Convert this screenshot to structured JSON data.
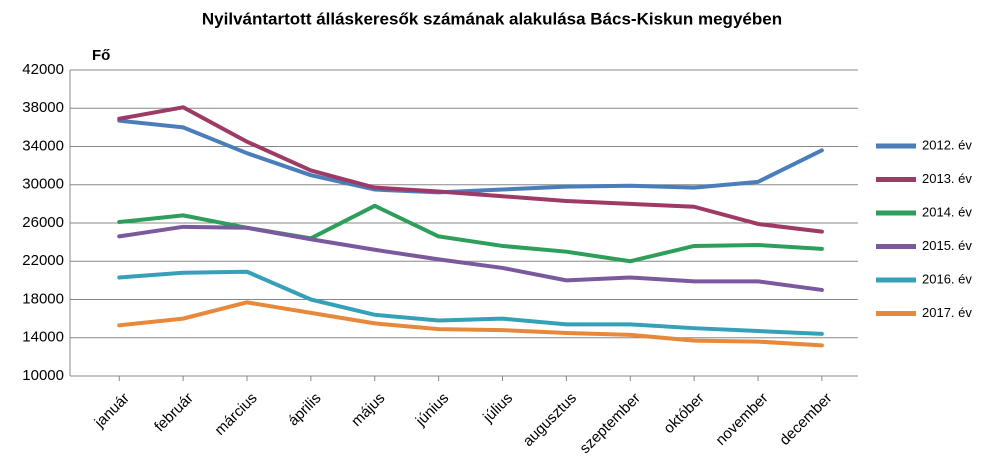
{
  "chart_data": {
    "type": "line",
    "title": "Nyilvántartott álláskeresők számának alakulása Bács-Kiskun megyében",
    "y_label": "Fő",
    "categories": [
      "január",
      "február",
      "március",
      "április",
      "május",
      "június",
      "július",
      "augusztus",
      "szeptember",
      "október",
      "november",
      "december"
    ],
    "series": [
      {
        "name": "2012. év",
        "color": "#4a7ebb",
        "values": [
          36700,
          36000,
          33300,
          31000,
          29500,
          29200,
          29500,
          29800,
          29900,
          29700,
          30300,
          33600
        ]
      },
      {
        "name": "2013. év",
        "color": "#9e3a66",
        "values": [
          36900,
          38100,
          34500,
          31500,
          29700,
          29300,
          28800,
          28300,
          28000,
          27700,
          25900,
          25100
        ]
      },
      {
        "name": "2014. év",
        "color": "#2e9e5b",
        "values": [
          26100,
          26800,
          25500,
          24400,
          27800,
          24600,
          23600,
          23000,
          22000,
          23600,
          23700,
          23300
        ]
      },
      {
        "name": "2015. év",
        "color": "#7a5a9c",
        "values": [
          24600,
          25600,
          25500,
          24300,
          23200,
          22200,
          21300,
          20000,
          20300,
          19900,
          19900,
          19000
        ]
      },
      {
        "name": "2016. év",
        "color": "#36a0b8",
        "values": [
          20300,
          20800,
          20900,
          18000,
          16400,
          15800,
          16000,
          15400,
          15400,
          15000,
          14700,
          14400
        ]
      },
      {
        "name": "2017. év",
        "color": "#e8883a",
        "values": [
          15300,
          16000,
          17700,
          16600,
          15500,
          14900,
          14800,
          14500,
          14300,
          13700,
          13600,
          13200
        ]
      }
    ],
    "ylim": [
      10000,
      42000
    ],
    "yticks": [
      10000,
      14000,
      18000,
      22000,
      26000,
      30000,
      34000,
      38000,
      42000
    ],
    "grid": true,
    "legend": "right"
  }
}
